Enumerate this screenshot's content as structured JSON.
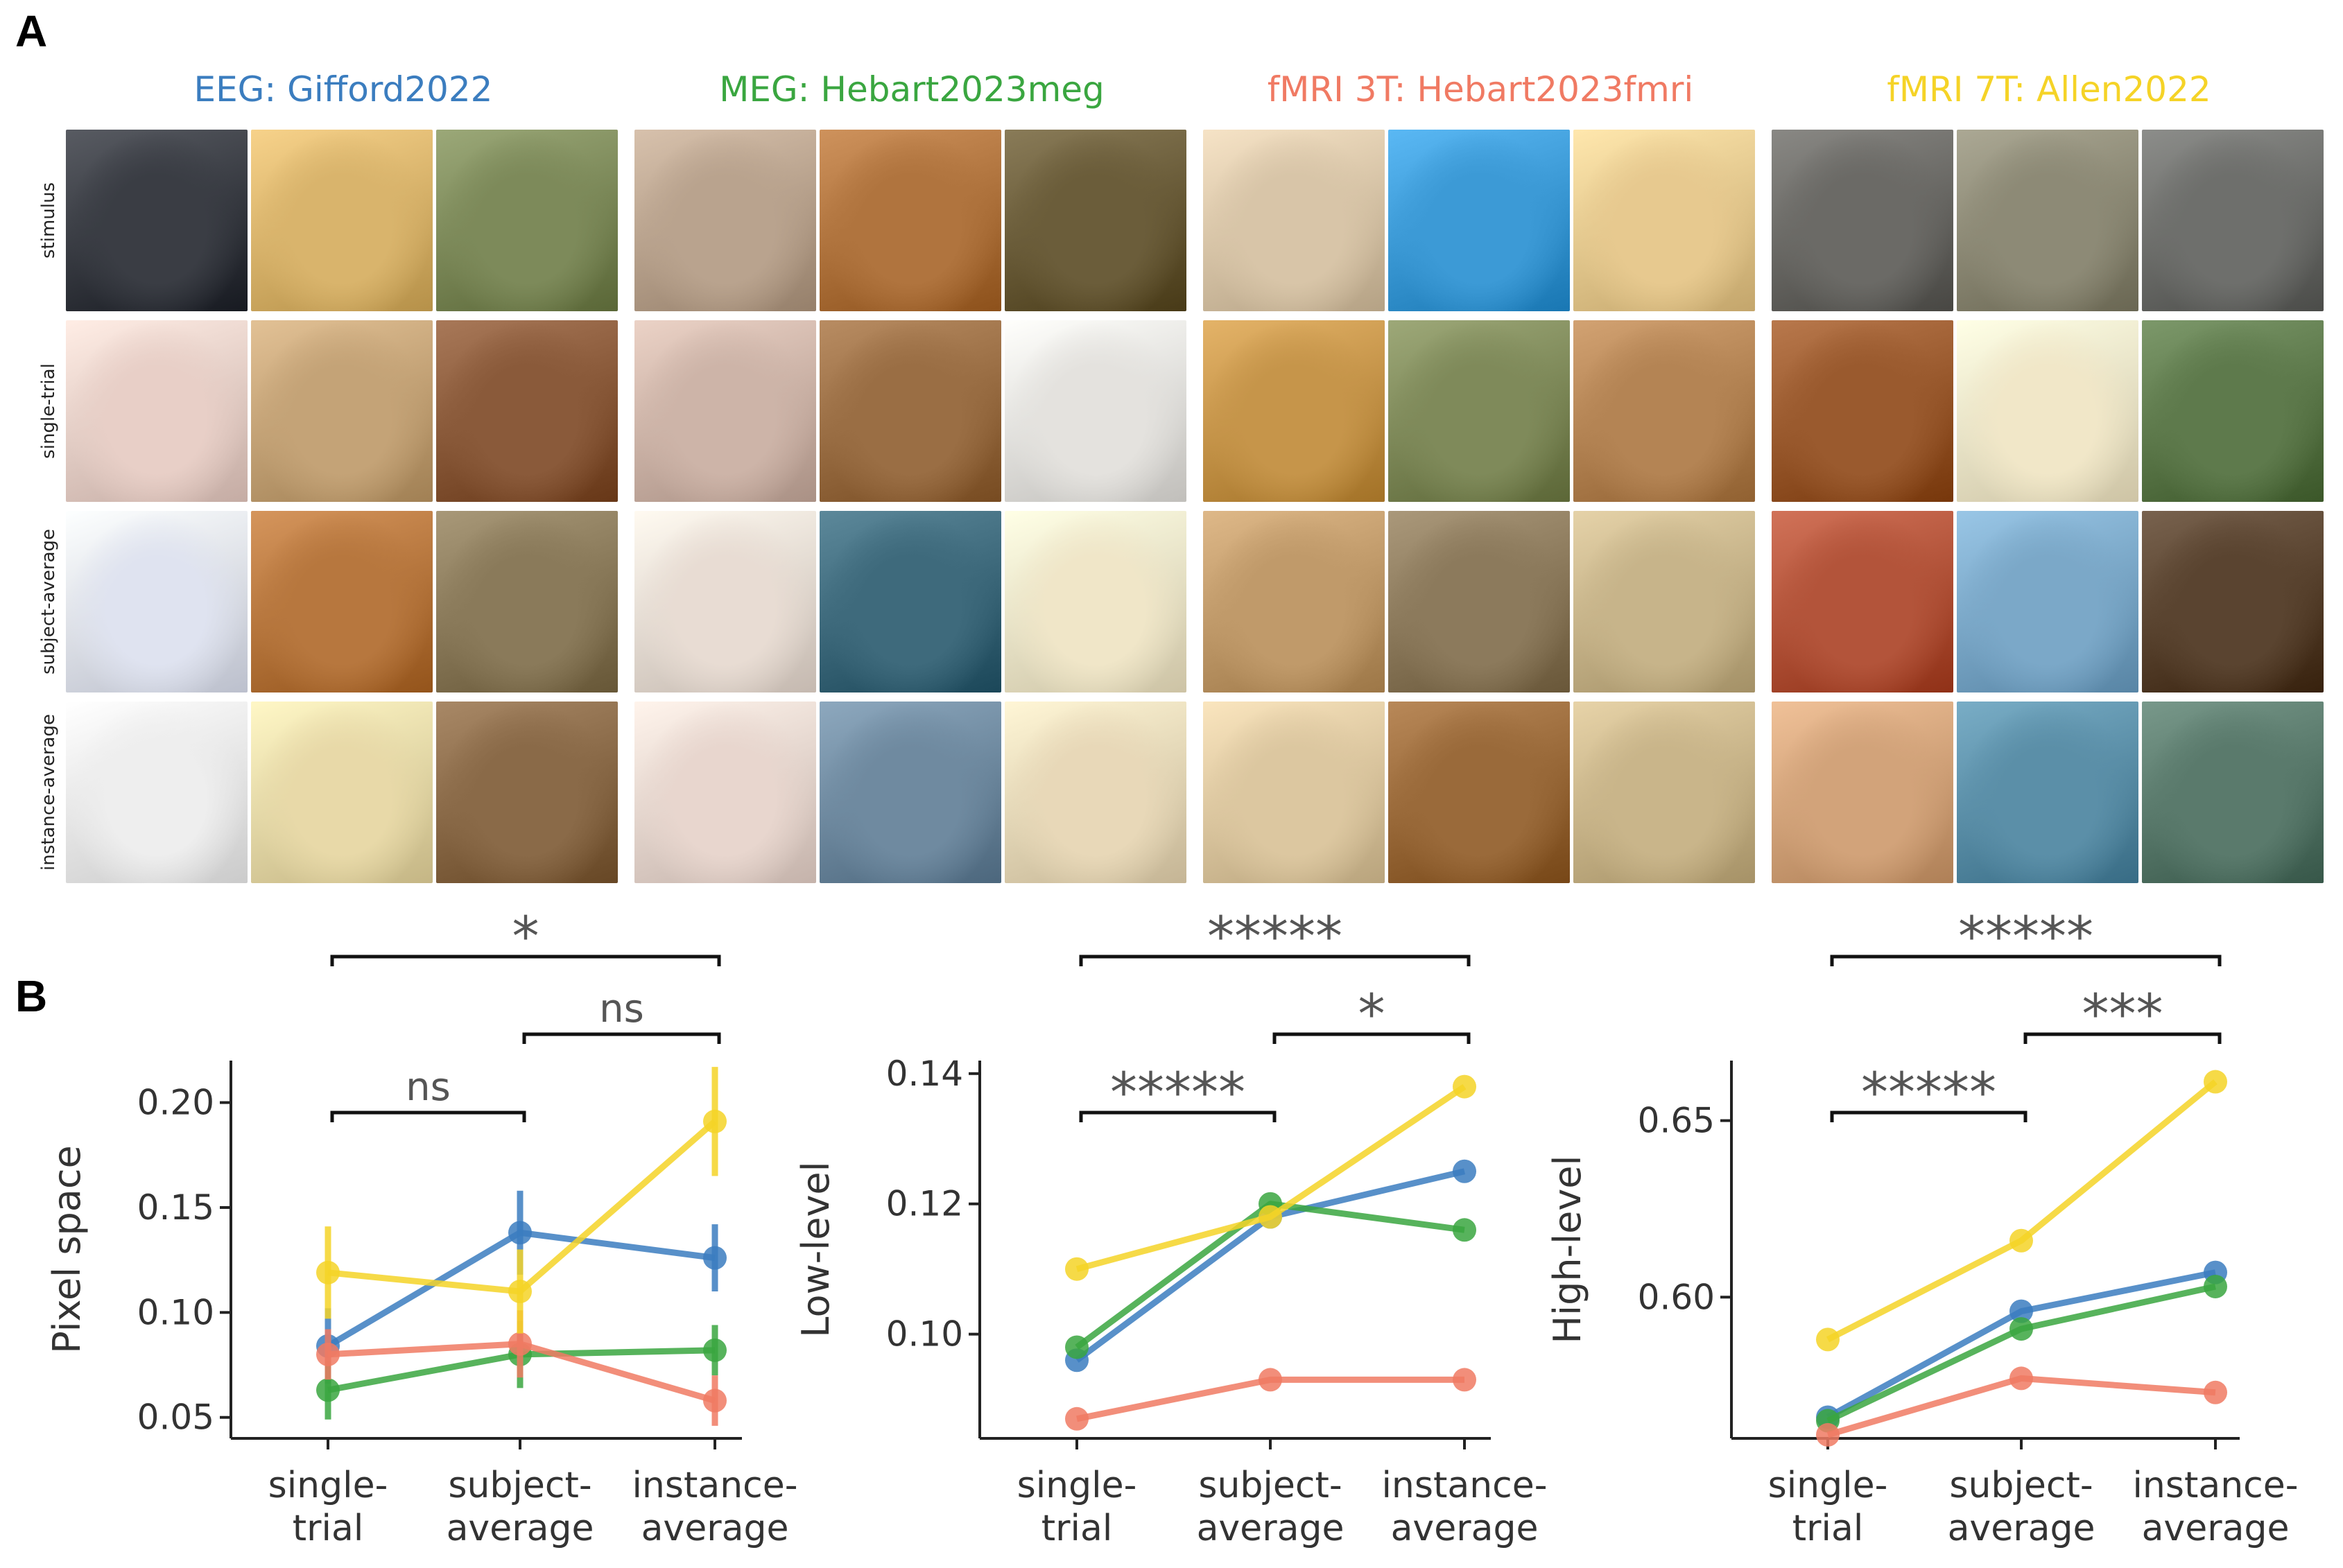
{
  "panel_labels": {
    "a": "A",
    "b": "B"
  },
  "datasets": [
    {
      "title": "EEG: Gifford2022",
      "color": "#3b7dbf"
    },
    {
      "title": "MEG: Hebart2023meg",
      "color": "#3aa640"
    },
    {
      "title": "fMRI 3T: Hebart2023fmri",
      "color": "#f07a63"
    },
    {
      "title": "fMRI 7T: Allen2022",
      "color": "#f5d327"
    }
  ],
  "row_labels": [
    "stimulus",
    "single-trial",
    "subject-average",
    "instance-average"
  ],
  "image_colors": [
    [
      [
        "#3a3d44",
        "#d9b46c",
        "#7d8a5a"
      ],
      [
        "#b9a38e",
        "#b0743e",
        "#6b5d3a"
      ],
      [
        "#d8c5a8",
        "#3c9ad6",
        "#e7c98f"
      ],
      [
        "#6b6a66",
        "#8d8a76",
        "#6e6f6c"
      ],
      [
        "#b8c2cc",
        "#3e6a5c",
        "#6e9a4c"
      ]
    ],
    [
      [
        "#e8cfc7",
        "#c4a377",
        "#8a5a3a"
      ],
      [
        "#cdb4a8",
        "#9a6e44",
        "#e4e2de"
      ],
      [
        "#c6954a",
        "#7f8a5a",
        "#b48454"
      ],
      [
        "#9a5a2e",
        "#f1e7c8",
        "#5e7a4c"
      ]
    ],
    [
      [
        "#dfe3f0",
        "#b7773e",
        "#8a7a5a"
      ],
      [
        "#e8dcd3",
        "#3e6a7c",
        "#f0e6c8"
      ],
      [
        "#c09a6a",
        "#8c7a5c",
        "#c7b48a"
      ],
      [
        "#b3543a",
        "#7ba8c8",
        "#5a4430"
      ]
    ],
    [
      [
        "#eeeeee",
        "#e8d9a8",
        "#8a6a48"
      ],
      [
        "#e8d6ce",
        "#6f8aa0",
        "#e8d8b8"
      ],
      [
        "#dcc7a0",
        "#9a6a3a",
        "#c9b58a"
      ],
      [
        "#d2a37a",
        "#5b8fa8",
        "#5a7a6c"
      ]
    ]
  ],
  "chart_data": [
    {
      "type": "line",
      "title": "",
      "xlabel": "",
      "ylabel": "Pixel space",
      "categories": [
        "single-trial",
        "subject-average",
        "instance-average"
      ],
      "category_lines": [
        [
          "single-",
          "trial"
        ],
        [
          "subject-",
          "average"
        ],
        [
          "instance-",
          "average"
        ]
      ],
      "ylim": [
        0.04,
        0.22
      ],
      "yticks": [
        0.05,
        0.1,
        0.15,
        0.2
      ],
      "yticklabels": [
        "0.05",
        "0.10",
        "0.15",
        "0.20"
      ],
      "series": [
        {
          "name": "EEG: Gifford2022",
          "color": "#3b7dbf",
          "values": [
            0.084,
            0.138,
            0.126
          ],
          "err": [
            0.018,
            0.02,
            0.016
          ]
        },
        {
          "name": "MEG: Hebart2023meg",
          "color": "#3aa640",
          "values": [
            0.063,
            0.08,
            0.082
          ],
          "err": [
            0.014,
            0.016,
            0.012
          ]
        },
        {
          "name": "fMRI 3T: Hebart2023fmri",
          "color": "#f07a63",
          "values": [
            0.08,
            0.085,
            0.058
          ],
          "err": [
            0.012,
            0.016,
            0.012
          ]
        },
        {
          "name": "fMRI 7T: Allen2022",
          "color": "#f5d327",
          "values": [
            0.119,
            0.11,
            0.191
          ],
          "err": [
            0.022,
            0.02,
            0.026
          ]
        }
      ],
      "annotations": [
        {
          "from": 0,
          "to": 1,
          "text": "ns",
          "level": 0
        },
        {
          "from": 1,
          "to": 2,
          "text": "ns",
          "level": 1
        },
        {
          "from": 0,
          "to": 2,
          "text": "*",
          "level": 2
        }
      ]
    },
    {
      "type": "line",
      "title": "",
      "xlabel": "",
      "ylabel": "Low-level",
      "categories": [
        "single-trial",
        "subject-average",
        "instance-average"
      ],
      "category_lines": [
        [
          "single-",
          "trial"
        ],
        [
          "subject-",
          "average"
        ],
        [
          "instance-",
          "average"
        ]
      ],
      "ylim": [
        0.084,
        0.142
      ],
      "yticks": [
        0.1,
        0.12,
        0.14
      ],
      "yticklabels": [
        "0.10",
        "0.12",
        "0.14"
      ],
      "series": [
        {
          "name": "EEG: Gifford2022",
          "color": "#3b7dbf",
          "values": [
            0.096,
            0.118,
            0.125
          ],
          "err": [
            0,
            0,
            0
          ]
        },
        {
          "name": "MEG: Hebart2023meg",
          "color": "#3aa640",
          "values": [
            0.098,
            0.12,
            0.116
          ],
          "err": [
            0,
            0,
            0
          ]
        },
        {
          "name": "fMRI 3T: Hebart2023fmri",
          "color": "#f07a63",
          "values": [
            0.087,
            0.093,
            0.093
          ],
          "err": [
            0,
            0,
            0
          ]
        },
        {
          "name": "fMRI 7T: Allen2022",
          "color": "#f5d327",
          "values": [
            0.11,
            0.118,
            0.138
          ],
          "err": [
            0,
            0,
            0
          ]
        }
      ],
      "annotations": [
        {
          "from": 0,
          "to": 1,
          "text": "*****",
          "level": 0
        },
        {
          "from": 1,
          "to": 2,
          "text": "*",
          "level": 1
        },
        {
          "from": 0,
          "to": 2,
          "text": "*****",
          "level": 2
        }
      ]
    },
    {
      "type": "line",
      "title": "",
      "xlabel": "",
      "ylabel": "High-level",
      "categories": [
        "single-trial",
        "subject-average",
        "instance-average"
      ],
      "category_lines": [
        [
          "single-",
          "trial"
        ],
        [
          "subject-",
          "average"
        ],
        [
          "instance-",
          "average"
        ]
      ],
      "ylim": [
        0.56,
        0.667
      ],
      "yticks": [
        0.6,
        0.65
      ],
      "yticklabels": [
        "0.60",
        "0.65"
      ],
      "series": [
        {
          "name": "EEG: Gifford2022",
          "color": "#3b7dbf",
          "values": [
            0.566,
            0.596,
            0.607
          ],
          "err": [
            0,
            0,
            0
          ]
        },
        {
          "name": "MEG: Hebart2023meg",
          "color": "#3aa640",
          "values": [
            0.565,
            0.591,
            0.603
          ],
          "err": [
            0,
            0,
            0
          ]
        },
        {
          "name": "fMRI 3T: Hebart2023fmri",
          "color": "#f07a63",
          "values": [
            0.561,
            0.577,
            0.573
          ],
          "err": [
            0,
            0,
            0
          ]
        },
        {
          "name": "fMRI 7T: Allen2022",
          "color": "#f5d327",
          "values": [
            0.588,
            0.616,
            0.661
          ],
          "err": [
            0,
            0,
            0
          ]
        }
      ],
      "annotations": [
        {
          "from": 0,
          "to": 1,
          "text": "*****",
          "level": 0
        },
        {
          "from": 1,
          "to": 2,
          "text": "***",
          "level": 1
        },
        {
          "from": 0,
          "to": 2,
          "text": "*****",
          "level": 2
        }
      ]
    }
  ]
}
